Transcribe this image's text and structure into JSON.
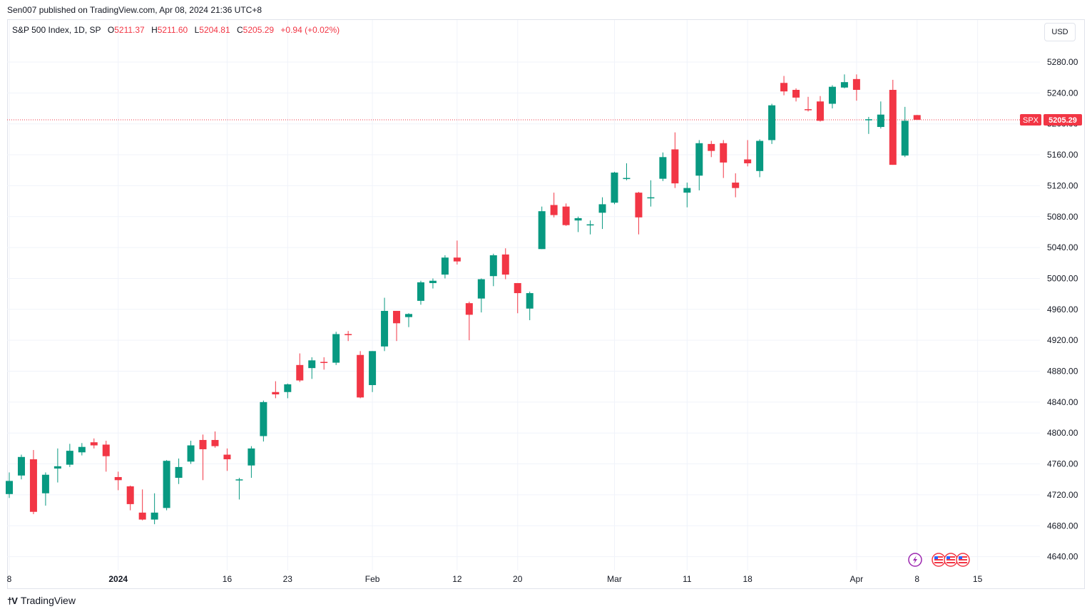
{
  "header": {
    "published": "Sen007 published on TradingView.com, Apr 08, 2024 21:36 UTC+8"
  },
  "legend": {
    "symbol": "S&P 500 Index, 1D, SP",
    "o_label": "O",
    "o_value": "5211.37",
    "h_label": "H",
    "h_value": "5211.60",
    "l_label": "L",
    "l_value": "5204.81",
    "c_label": "C",
    "c_value": "5205.29",
    "change": "+0.94 (+0.02%)"
  },
  "currency_button": "USD",
  "price_tag": {
    "ticker": "SPX",
    "price": "5205.29"
  },
  "footer": {
    "brand": "TradingView"
  },
  "colors": {
    "up": "#089981",
    "down": "#f23645",
    "grid": "#f0f3fa",
    "axis_text": "#131722"
  },
  "chart_data": {
    "type": "candlestick",
    "title": "S&P 500 Index, 1D, SP",
    "ylim": [
      4615,
      5315
    ],
    "y_ticks": [
      4640,
      4680,
      4720,
      4760,
      4800,
      4840,
      4880,
      4920,
      4960,
      5000,
      5040,
      5080,
      5120,
      5160,
      5200,
      5240,
      5280
    ],
    "y_tick_labels": [
      "4640.00",
      "4680.00",
      "4720.00",
      "4760.00",
      "4800.00",
      "4840.00",
      "4880.00",
      "4920.00",
      "4960.00",
      "5000.00",
      "5040.00",
      "5080.00",
      "5120.00",
      "5160.00",
      "5200.00",
      "5240.00",
      "5280.00"
    ],
    "x_ticks": [
      {
        "index": 0,
        "label": "8"
      },
      {
        "index": 9,
        "label": "2024"
      },
      {
        "index": 18,
        "label": "16"
      },
      {
        "index": 23,
        "label": "23"
      },
      {
        "index": 30,
        "label": "Feb"
      },
      {
        "index": 37,
        "label": "12"
      },
      {
        "index": 42,
        "label": "20"
      },
      {
        "index": 50,
        "label": "Mar"
      },
      {
        "index": 56,
        "label": "11"
      },
      {
        "index": 61,
        "label": "18"
      },
      {
        "index": 70,
        "label": "Apr"
      },
      {
        "index": 75,
        "label": "8"
      },
      {
        "index": 80,
        "label": "15"
      }
    ],
    "last_price": 5205.29,
    "grid": true,
    "candles": [
      {
        "o": 4721,
        "h": 4749,
        "l": 4716,
        "c": 4738
      },
      {
        "o": 4745,
        "h": 4772,
        "l": 4740,
        "c": 4769
      },
      {
        "o": 4766,
        "h": 4778,
        "l": 4695,
        "c": 4698
      },
      {
        "o": 4722,
        "h": 4749,
        "l": 4706,
        "c": 4746
      },
      {
        "o": 4754,
        "h": 4780,
        "l": 4736,
        "c": 4757
      },
      {
        "o": 4759,
        "h": 4786,
        "l": 4756,
        "c": 4777
      },
      {
        "o": 4775,
        "h": 4787,
        "l": 4771,
        "c": 4782
      },
      {
        "o": 4788,
        "h": 4793,
        "l": 4780,
        "c": 4784
      },
      {
        "o": 4785,
        "h": 4790,
        "l": 4750,
        "c": 4770
      },
      {
        "o": 4743,
        "h": 4750,
        "l": 4726,
        "c": 4739
      },
      {
        "o": 4731,
        "h": 4732,
        "l": 4700,
        "c": 4708
      },
      {
        "o": 4697,
        "h": 4727,
        "l": 4687,
        "c": 4688
      },
      {
        "o": 4688,
        "h": 4722,
        "l": 4682,
        "c": 4697
      },
      {
        "o": 4703,
        "h": 4765,
        "l": 4700,
        "c": 4764
      },
      {
        "o": 4742,
        "h": 4767,
        "l": 4734,
        "c": 4756
      },
      {
        "o": 4763,
        "h": 4790,
        "l": 4760,
        "c": 4784
      },
      {
        "o": 4791,
        "h": 4798,
        "l": 4739,
        "c": 4779
      },
      {
        "o": 4791,
        "h": 4802,
        "l": 4781,
        "c": 4783
      },
      {
        "o": 4772,
        "h": 4780,
        "l": 4751,
        "c": 4766
      },
      {
        "o": 4740,
        "h": 4742,
        "l": 4714,
        "c": 4740
      },
      {
        "o": 4758,
        "h": 4783,
        "l": 4742,
        "c": 4780
      },
      {
        "o": 4796,
        "h": 4842,
        "l": 4789,
        "c": 4840
      },
      {
        "o": 4853,
        "h": 4867,
        "l": 4845,
        "c": 4850
      },
      {
        "o": 4853,
        "h": 4864,
        "l": 4845,
        "c": 4863
      },
      {
        "o": 4888,
        "h": 4903,
        "l": 4866,
        "c": 4868
      },
      {
        "o": 4884,
        "h": 4898,
        "l": 4870,
        "c": 4894
      },
      {
        "o": 4892,
        "h": 4898,
        "l": 4882,
        "c": 4891
      },
      {
        "o": 4891,
        "h": 4931,
        "l": 4888,
        "c": 4928
      },
      {
        "o": 4928,
        "h": 4932,
        "l": 4919,
        "c": 4927
      },
      {
        "o": 4901,
        "h": 4906,
        "l": 4845,
        "c": 4846
      },
      {
        "o": 4862,
        "h": 4906,
        "l": 4853,
        "c": 4906
      },
      {
        "o": 4912,
        "h": 4975,
        "l": 4906,
        "c": 4958
      },
      {
        "o": 4958,
        "h": 4958,
        "l": 4919,
        "c": 4942
      },
      {
        "o": 4950,
        "h": 4955,
        "l": 4937,
        "c": 4954
      },
      {
        "o": 4971,
        "h": 4997,
        "l": 4966,
        "c": 4995
      },
      {
        "o": 4994,
        "h": 5000,
        "l": 4987,
        "c": 4997
      },
      {
        "o": 5005,
        "h": 5030,
        "l": 5000,
        "c": 5027
      },
      {
        "o": 5027,
        "h": 5049,
        "l": 5018,
        "c": 5022
      },
      {
        "o": 4968,
        "h": 4970,
        "l": 4920,
        "c": 4953
      },
      {
        "o": 4974,
        "h": 5000,
        "l": 4956,
        "c": 4999
      },
      {
        "o": 5003,
        "h": 5032,
        "l": 4990,
        "c": 5030
      },
      {
        "o": 5031,
        "h": 5039,
        "l": 4999,
        "c": 5005
      },
      {
        "o": 4994,
        "h": 4994,
        "l": 4955,
        "c": 4981
      },
      {
        "o": 4961,
        "h": 4983,
        "l": 4946,
        "c": 4981
      },
      {
        "o": 5038,
        "h": 5093,
        "l": 5038,
        "c": 5087
      },
      {
        "o": 5095,
        "h": 5111,
        "l": 5079,
        "c": 5082
      },
      {
        "o": 5093,
        "h": 5097,
        "l": 5068,
        "c": 5069
      },
      {
        "o": 5075,
        "h": 5080,
        "l": 5060,
        "c": 5078
      },
      {
        "o": 5070,
        "h": 5075,
        "l": 5057,
        "c": 5070
      },
      {
        "o": 5085,
        "h": 5105,
        "l": 5064,
        "c": 5096
      },
      {
        "o": 5098,
        "h": 5138,
        "l": 5096,
        "c": 5137
      },
      {
        "o": 5130,
        "h": 5149,
        "l": 5127,
        "c": 5130
      },
      {
        "o": 5111,
        "h": 5112,
        "l": 5057,
        "c": 5079
      },
      {
        "o": 5105,
        "h": 5127,
        "l": 5093,
        "c": 5105
      },
      {
        "o": 5129,
        "h": 5163,
        "l": 5126,
        "c": 5157
      },
      {
        "o": 5167,
        "h": 5189,
        "l": 5117,
        "c": 5123
      },
      {
        "o": 5111,
        "h": 5124,
        "l": 5092,
        "c": 5117
      },
      {
        "o": 5133,
        "h": 5179,
        "l": 5114,
        "c": 5175
      },
      {
        "o": 5174,
        "h": 5178,
        "l": 5157,
        "c": 5165
      },
      {
        "o": 5175,
        "h": 5179,
        "l": 5130,
        "c": 5150
      },
      {
        "o": 5124,
        "h": 5136,
        "l": 5105,
        "c": 5117
      },
      {
        "o": 5154,
        "h": 5179,
        "l": 5145,
        "c": 5149
      },
      {
        "o": 5139,
        "h": 5180,
        "l": 5131,
        "c": 5178
      },
      {
        "o": 5179,
        "h": 5226,
        "l": 5174,
        "c": 5224
      },
      {
        "o": 5253,
        "h": 5262,
        "l": 5237,
        "c": 5242
      },
      {
        "o": 5244,
        "h": 5246,
        "l": 5229,
        "c": 5234
      },
      {
        "o": 5219,
        "h": 5235,
        "l": 5216,
        "c": 5218
      },
      {
        "o": 5229,
        "h": 5236,
        "l": 5203,
        "c": 5204
      },
      {
        "o": 5226,
        "h": 5250,
        "l": 5220,
        "c": 5248
      },
      {
        "o": 5247,
        "h": 5264,
        "l": 5246,
        "c": 5254
      },
      {
        "o": 5258,
        "h": 5264,
        "l": 5230,
        "c": 5244
      },
      {
        "o": 5205,
        "h": 5209,
        "l": 5187,
        "c": 5206
      },
      {
        "o": 5196,
        "h": 5229,
        "l": 5194,
        "c": 5212
      },
      {
        "o": 5244,
        "h": 5257,
        "l": 5147,
        "c": 5147
      },
      {
        "o": 5159,
        "h": 5222,
        "l": 5157,
        "c": 5204
      },
      {
        "o": 5211.37,
        "h": 5211.6,
        "l": 5204.81,
        "c": 5205.29
      }
    ]
  }
}
